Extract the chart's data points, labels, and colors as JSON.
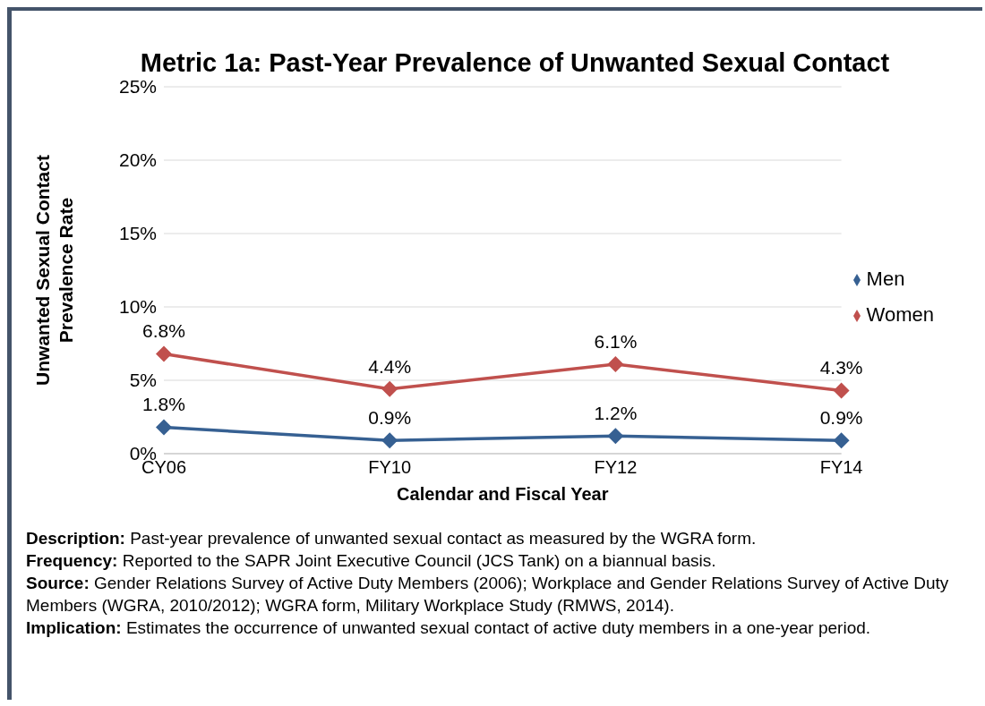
{
  "chart_data": {
    "type": "line",
    "title": "Metric 1a: Past-Year Prevalence of Unwanted Sexual Contact",
    "xlabel": "Calendar and Fiscal Year",
    "ylabel": "Unwanted Sexual Contact Prevalence Rate",
    "categories": [
      "CY06",
      "FY10",
      "FY12",
      "FY14"
    ],
    "series": [
      {
        "name": "Women",
        "color": "#c0504d",
        "values": [
          6.8,
          4.4,
          6.1,
          4.3
        ],
        "value_labels": [
          "6.8%",
          "4.4%",
          "6.1%",
          "4.3%"
        ]
      },
      {
        "name": "Men",
        "color": "#366092",
        "values": [
          1.8,
          0.9,
          1.2,
          0.9
        ],
        "value_labels": [
          "1.8%",
          "0.9%",
          "1.2%",
          "0.9%"
        ]
      }
    ],
    "ylim": [
      0,
      25
    ],
    "yticks": [
      {
        "value": 0,
        "label": "0%"
      },
      {
        "value": 5,
        "label": "5%"
      },
      {
        "value": 10,
        "label": "10%"
      },
      {
        "value": 15,
        "label": "15%"
      },
      {
        "value": 20,
        "label": "20%"
      },
      {
        "value": 25,
        "label": "25%"
      }
    ],
    "grid": "y",
    "legend": "right",
    "marker": "diamond",
    "line_style": "solid",
    "annotations": [
      "Description: Past-year prevalence of unwanted sexual contact as measured by the WGRA form.",
      "Frequency: Reported to the SAPR Joint Executive Council (JCS Tank) on a biannual basis.",
      "Source: Gender Relations Survey of Active Duty Members (2006); Workplace and Gender Relations Survey of Active Duty Members (WGRA, 2010/2012); WGRA form, Military Workplace Study (RMWS, 2014).",
      "Implication: Estimates the occurrence of unwanted sexual contact of active duty members in a one-year period."
    ]
  }
}
